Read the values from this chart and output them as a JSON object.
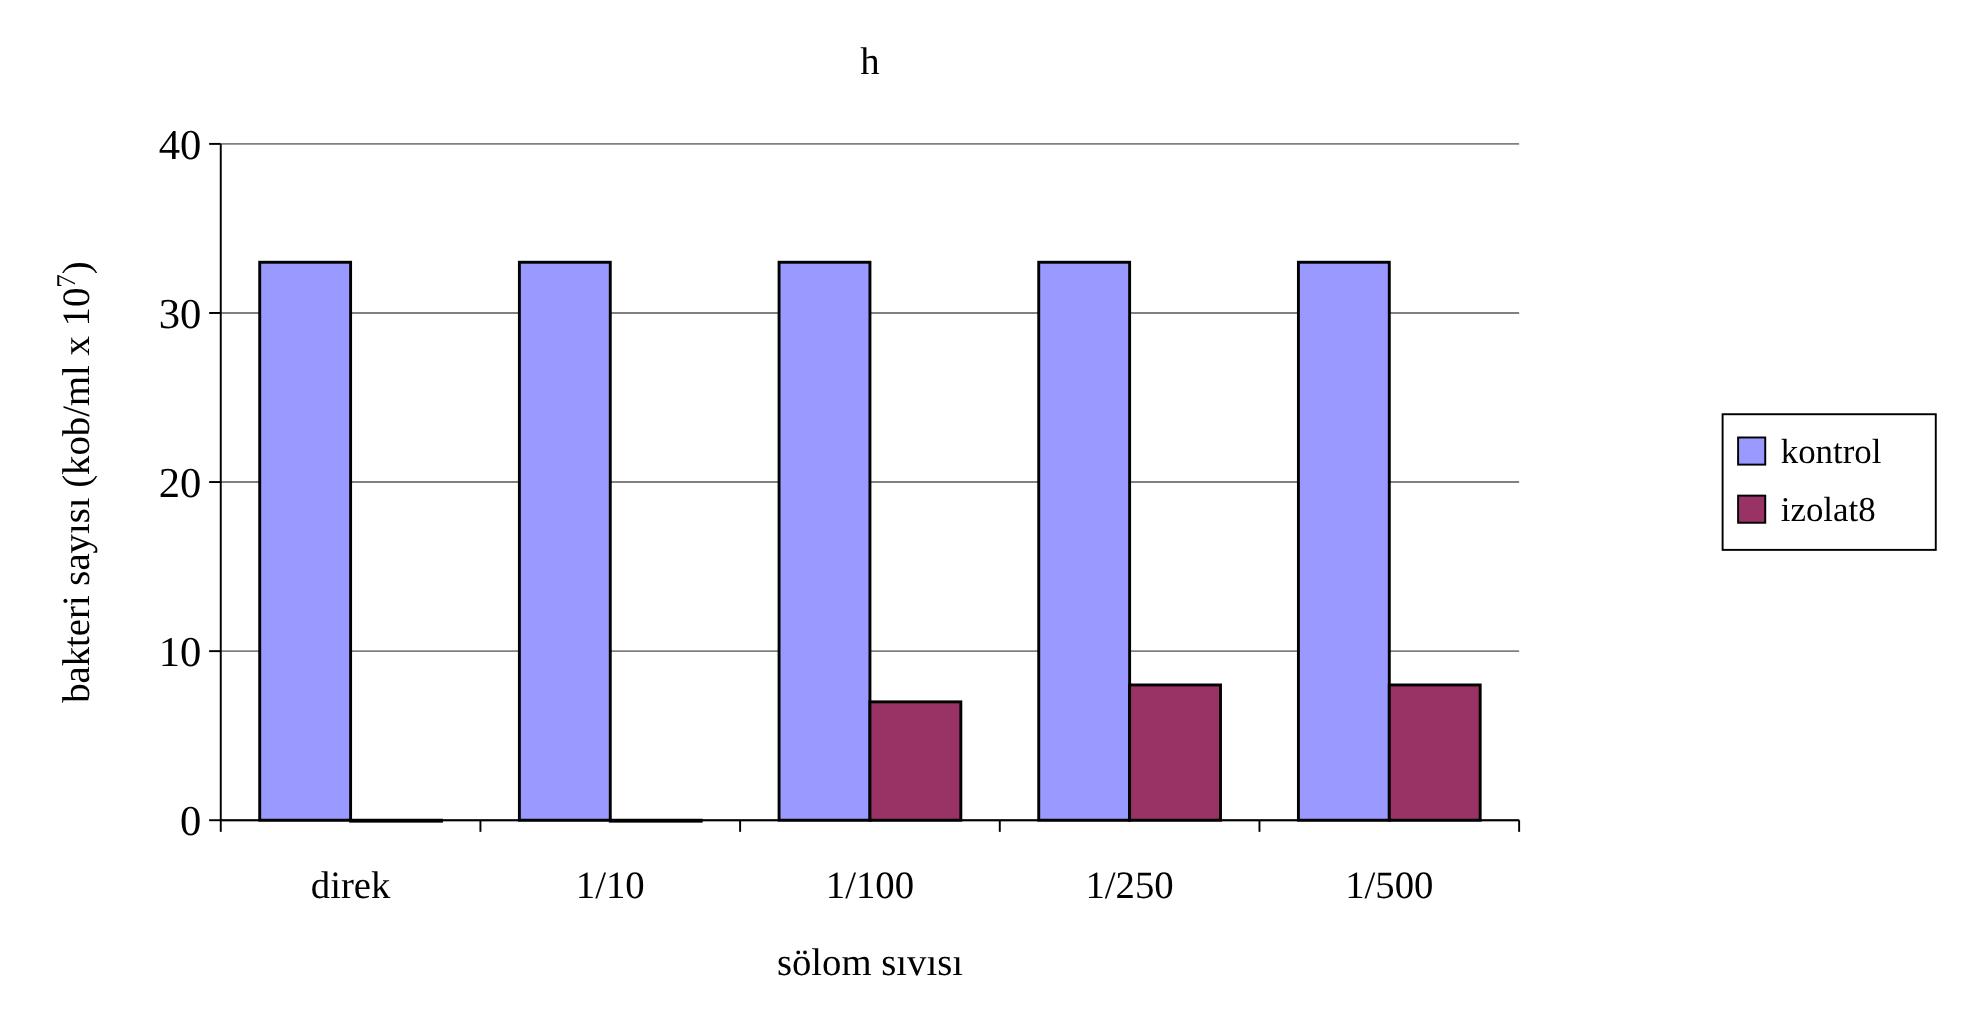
{
  "chart_data": {
    "type": "bar",
    "title": "h",
    "xlabel": "sölom sıvısı",
    "ylabel": "bakteri sayısı (kob/ml x 10$^{7}$)",
    "categories": [
      "direk",
      "1/10",
      "1/100",
      "1/250",
      "1/500"
    ],
    "series": [
      {
        "name": "kontrol",
        "color": "#9999ff",
        "values": [
          33,
          33,
          33,
          33,
          33
        ]
      },
      {
        "name": "izolat8",
        "color": "#993366",
        "values": [
          0,
          0,
          7,
          8,
          8
        ]
      }
    ],
    "ylim": [
      0,
      40
    ],
    "yticks": [
      0,
      10,
      20,
      30,
      40
    ],
    "grid": "y",
    "legend": "right"
  }
}
